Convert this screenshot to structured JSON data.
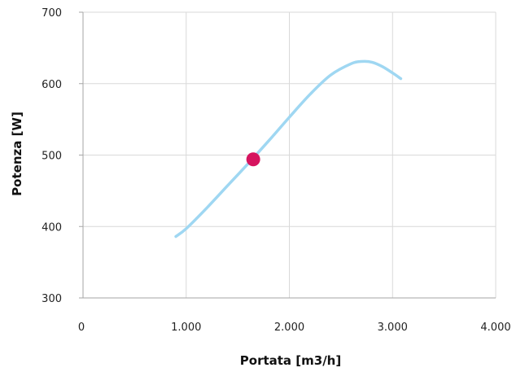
{
  "chart_data": {
    "type": "line",
    "title": "",
    "xlabel": "Portata [m3/h]",
    "ylabel": "Potenza [W]",
    "xlim": [
      0,
      4000
    ],
    "ylim": [
      300,
      700
    ],
    "grid": true,
    "x_ticks": [
      {
        "value": 0,
        "label": "0"
      },
      {
        "value": 1000,
        "label": "1.000"
      },
      {
        "value": 2000,
        "label": "2.000"
      },
      {
        "value": 3000,
        "label": "3.000"
      },
      {
        "value": 4000,
        "label": "4.000"
      }
    ],
    "y_ticks": [
      {
        "value": 300,
        "label": "300"
      },
      {
        "value": 400,
        "label": "400"
      },
      {
        "value": 500,
        "label": "500"
      },
      {
        "value": 600,
        "label": "600"
      },
      {
        "value": 700,
        "label": "700"
      }
    ],
    "series": [
      {
        "kind": "curve",
        "color": "#9fd7f2",
        "x": [
          900,
          1000,
          1200,
          1400,
          1600,
          1800,
          2000,
          2200,
          2400,
          2600,
          2700,
          2800,
          2900,
          3000,
          3080
        ],
        "y": [
          386,
          397,
          426,
          457,
          488,
          520,
          553,
          585,
          612,
          628,
          631,
          630,
          624,
          615,
          607
        ]
      },
      {
        "kind": "point",
        "color": "#d6145f",
        "x": [
          1650
        ],
        "y": [
          494
        ]
      }
    ]
  }
}
